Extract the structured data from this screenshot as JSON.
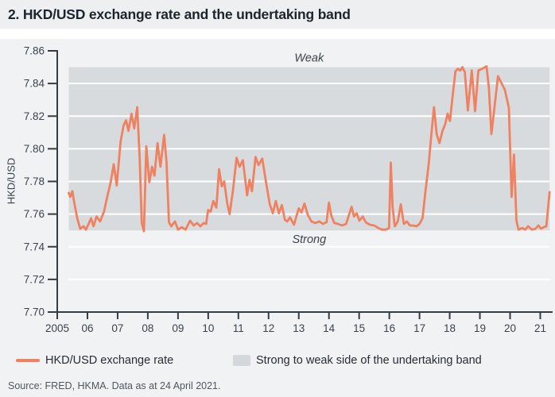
{
  "title": "2. HKD/USD exchange rate and the undertaking band",
  "source": "Source: FRED, HKMA. Data as at 24 April 2021.",
  "legend": {
    "line_label": "HKD/USD exchange rate",
    "band_label": "Strong to weak side of the undertaking band"
  },
  "colors": {
    "line": "#ef8161",
    "band": "#d8dbde",
    "legend_band_swatch": "#d4d8db",
    "grid": "#ffffff",
    "axis": "#343c45",
    "tick_text": "#3a434c",
    "band_label_text": "#3c434b"
  },
  "chart_data": {
    "type": "line",
    "title": "2. HKD/USD exchange rate and the undertaking band",
    "xlabel": "",
    "ylabel": "HKD/USD",
    "ylim": [
      7.7,
      7.86
    ],
    "xlim": [
      2005,
      2021.33
    ],
    "grid": true,
    "legend_position": "bottom",
    "y_ticks": [
      7.7,
      7.72,
      7.74,
      7.76,
      7.78,
      7.8,
      7.82,
      7.84,
      7.86
    ],
    "x_tick_years": [
      2005,
      2006,
      2007,
      2008,
      2009,
      2010,
      2011,
      2012,
      2013,
      2014,
      2015,
      2016,
      2017,
      2018,
      2019,
      2020,
      2021
    ],
    "x_tick_labels": [
      "2005",
      "06",
      "07",
      "08",
      "09",
      "10",
      "11",
      "12",
      "13",
      "14",
      "15",
      "16",
      "17",
      "18",
      "19",
      "20",
      "21"
    ],
    "band": {
      "from": 7.75,
      "to": 7.85,
      "x_start": 2005.38,
      "x_end": 2021.31,
      "label_weak": "Weak",
      "label_strong": "Strong"
    },
    "series": [
      {
        "name": "HKD/USD exchange rate",
        "points": [
          [
            2005.38,
            7.773
          ],
          [
            2005.43,
            7.7705
          ],
          [
            2005.5,
            7.774
          ],
          [
            2005.57,
            7.7665
          ],
          [
            2005.66,
            7.7575
          ],
          [
            2005.76,
            7.751
          ],
          [
            2005.87,
            7.7525
          ],
          [
            2005.95,
            7.7505
          ],
          [
            2006.05,
            7.7545
          ],
          [
            2006.12,
            7.7575
          ],
          [
            2006.2,
            7.7525
          ],
          [
            2006.3,
            7.7585
          ],
          [
            2006.42,
            7.7555
          ],
          [
            2006.55,
            7.7615
          ],
          [
            2006.65,
            7.77
          ],
          [
            2006.77,
            7.7795
          ],
          [
            2006.87,
            7.7905
          ],
          [
            2006.97,
            7.7775
          ],
          [
            2007.1,
            7.8045
          ],
          [
            2007.2,
            7.8145
          ],
          [
            2007.28,
            7.8175
          ],
          [
            2007.36,
            7.811
          ],
          [
            2007.46,
            7.8215
          ],
          [
            2007.55,
            7.8125
          ],
          [
            2007.65,
            7.8255
          ],
          [
            2007.73,
            7.795
          ],
          [
            2007.8,
            7.7545
          ],
          [
            2007.87,
            7.7495
          ],
          [
            2007.95,
            7.8015
          ],
          [
            2008.05,
            7.7795
          ],
          [
            2008.14,
            7.789
          ],
          [
            2008.22,
            7.7835
          ],
          [
            2008.32,
            7.8035
          ],
          [
            2008.42,
            7.789
          ],
          [
            2008.54,
            7.8085
          ],
          [
            2008.62,
            7.792
          ],
          [
            2008.7,
            7.755
          ],
          [
            2008.78,
            7.7525
          ],
          [
            2008.9,
            7.7555
          ],
          [
            2009.0,
            7.7505
          ],
          [
            2009.12,
            7.752
          ],
          [
            2009.25,
            7.7505
          ],
          [
            2009.4,
            7.756
          ],
          [
            2009.52,
            7.753
          ],
          [
            2009.63,
            7.7545
          ],
          [
            2009.74,
            7.7525
          ],
          [
            2009.85,
            7.7545
          ],
          [
            2009.93,
            7.754
          ],
          [
            2010.0,
            7.7625
          ],
          [
            2010.08,
            7.7615
          ],
          [
            2010.17,
            7.768
          ],
          [
            2010.27,
            7.764
          ],
          [
            2010.36,
            7.7875
          ],
          [
            2010.45,
            7.777
          ],
          [
            2010.53,
            7.78
          ],
          [
            2010.63,
            7.7665
          ],
          [
            2010.71,
            7.76
          ],
          [
            2010.82,
            7.7745
          ],
          [
            2010.94,
            7.7945
          ],
          [
            2011.04,
            7.789
          ],
          [
            2011.15,
            7.793
          ],
          [
            2011.29,
            7.7715
          ],
          [
            2011.37,
            7.781
          ],
          [
            2011.45,
            7.774
          ],
          [
            2011.57,
            7.795
          ],
          [
            2011.67,
            7.79
          ],
          [
            2011.79,
            7.794
          ],
          [
            2011.93,
            7.778
          ],
          [
            2012.04,
            7.766
          ],
          [
            2012.14,
            7.7605
          ],
          [
            2012.24,
            7.768
          ],
          [
            2012.34,
            7.7605
          ],
          [
            2012.44,
            7.7655
          ],
          [
            2012.54,
            7.7565
          ],
          [
            2012.62,
            7.7555
          ],
          [
            2012.71,
            7.758
          ],
          [
            2012.84,
            7.7535
          ],
          [
            2013.0,
            7.7635
          ],
          [
            2013.09,
            7.761
          ],
          [
            2013.19,
            7.7665
          ],
          [
            2013.3,
            7.7595
          ],
          [
            2013.42,
            7.7555
          ],
          [
            2013.55,
            7.7545
          ],
          [
            2013.68,
            7.7555
          ],
          [
            2013.8,
            7.754
          ],
          [
            2013.92,
            7.755
          ],
          [
            2014.0,
            7.767
          ],
          [
            2014.08,
            7.759
          ],
          [
            2014.18,
            7.7545
          ],
          [
            2014.3,
            7.754
          ],
          [
            2014.44,
            7.753
          ],
          [
            2014.57,
            7.754
          ],
          [
            2014.75,
            7.7645
          ],
          [
            2014.83,
            7.7585
          ],
          [
            2014.92,
            7.7605
          ],
          [
            2015.01,
            7.756
          ],
          [
            2015.12,
            7.7585
          ],
          [
            2015.22,
            7.755
          ],
          [
            2015.35,
            7.7535
          ],
          [
            2015.5,
            7.753
          ],
          [
            2015.63,
            7.7515
          ],
          [
            2015.76,
            7.7505
          ],
          [
            2015.88,
            7.7505
          ],
          [
            2015.99,
            7.7515
          ],
          [
            2016.05,
            7.7915
          ],
          [
            2016.11,
            7.764
          ],
          [
            2016.18,
            7.7525
          ],
          [
            2016.28,
            7.7555
          ],
          [
            2016.38,
            7.766
          ],
          [
            2016.48,
            7.754
          ],
          [
            2016.58,
            7.7555
          ],
          [
            2016.68,
            7.753
          ],
          [
            2016.79,
            7.753
          ],
          [
            2016.9,
            7.7525
          ],
          [
            2017.0,
            7.754
          ],
          [
            2017.1,
            7.7575
          ],
          [
            2017.2,
            7.7745
          ],
          [
            2017.3,
            7.79
          ],
          [
            2017.38,
            7.806
          ],
          [
            2017.48,
            7.8255
          ],
          [
            2017.57,
            7.809
          ],
          [
            2017.66,
            7.8035
          ],
          [
            2017.76,
            7.811
          ],
          [
            2017.85,
            7.815
          ],
          [
            2017.93,
            7.8215
          ],
          [
            2018.01,
            7.817
          ],
          [
            2018.1,
            7.833
          ],
          [
            2018.19,
            7.8475
          ],
          [
            2018.27,
            7.849
          ],
          [
            2018.35,
            7.848
          ],
          [
            2018.42,
            7.85
          ],
          [
            2018.5,
            7.847
          ],
          [
            2018.6,
            7.8235
          ],
          [
            2018.73,
            7.848
          ],
          [
            2018.84,
            7.823
          ],
          [
            2018.95,
            7.848
          ],
          [
            2019.08,
            7.849
          ],
          [
            2019.22,
            7.8505
          ],
          [
            2019.3,
            7.837
          ],
          [
            2019.38,
            7.809
          ],
          [
            2019.5,
            7.828
          ],
          [
            2019.6,
            7.8445
          ],
          [
            2019.72,
            7.84
          ],
          [
            2019.83,
            7.836
          ],
          [
            2019.96,
            7.825
          ],
          [
            2020.05,
            7.7705
          ],
          [
            2020.13,
            7.7965
          ],
          [
            2020.21,
            7.756
          ],
          [
            2020.28,
            7.7505
          ],
          [
            2020.4,
            7.7515
          ],
          [
            2020.5,
            7.7505
          ],
          [
            2020.6,
            7.7525
          ],
          [
            2020.72,
            7.7505
          ],
          [
            2020.84,
            7.751
          ],
          [
            2020.94,
            7.753
          ],
          [
            2021.03,
            7.751
          ],
          [
            2021.12,
            7.752
          ],
          [
            2021.2,
            7.7525
          ],
          [
            2021.31,
            7.7735
          ]
        ]
      }
    ]
  }
}
